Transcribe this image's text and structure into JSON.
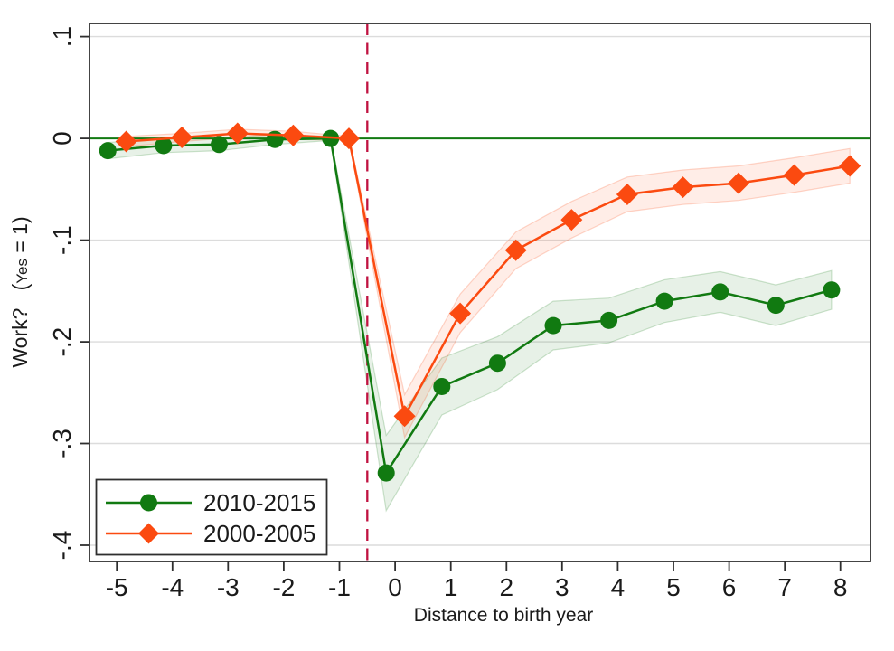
{
  "chart_data": {
    "type": "line",
    "title": "",
    "xlabel": "Distance to birth year",
    "ylabel": "Work?   (Yes = 1)",
    "ylabel_parts": {
      "prefix": "Work?   (",
      "small": "Yes",
      "suffix": " = 1)"
    },
    "x_ticks": [
      -5,
      -4,
      -3,
      -2,
      -1,
      0,
      1,
      2,
      3,
      4,
      5,
      6,
      7,
      8
    ],
    "x_tick_labels": [
      "-5",
      "-4",
      "-3",
      "-2",
      "-1",
      "0",
      "1",
      "2",
      "3",
      "4",
      "5",
      "6",
      "7",
      "8"
    ],
    "y_ticks": [
      0.1,
      0,
      -0.1,
      -0.2,
      -0.3,
      -0.4
    ],
    "y_tick_labels": [
      ".1",
      "0",
      "-.1",
      "-.2",
      "-.3",
      "-.4"
    ],
    "xlim": [
      -5.49,
      8.54
    ],
    "ylim": [
      -0.416,
      0.113
    ],
    "grid": "horizontal",
    "legend_position": "bottom-left",
    "colors": {
      "green_series": "#117a11",
      "orange_series": "#fb4a10",
      "zero_line": "#117a11",
      "treatment_line": "#c01240",
      "gridline": "#dcdcdc",
      "axis": "#2f2f2f",
      "text": "#1a1a1a",
      "background": "#ffffff"
    },
    "reference_lines": [
      {
        "type": "horizontal",
        "value": 0,
        "style": "solid",
        "color": "#117a11"
      },
      {
        "type": "vertical",
        "value": -0.5,
        "style": "dashed",
        "color": "#c01240"
      }
    ],
    "categories": [
      -5,
      -4,
      -3,
      -2,
      -1,
      0,
      1,
      2,
      3,
      4,
      5,
      6,
      7,
      8
    ],
    "series": [
      {
        "name": "2010-2015",
        "marker": "circle",
        "color": "#117a11",
        "band_fill": "rgba(17,122,17,0.10)",
        "band_edge": "rgba(17,122,17,0.20)",
        "x_offset": -0.16,
        "values": [
          -0.012,
          -0.007,
          -0.006,
          -0.001,
          0.0,
          -0.329,
          -0.244,
          -0.221,
          -0.184,
          -0.179,
          -0.16,
          -0.151,
          -0.164,
          -0.149
        ],
        "ci": [
          0.008,
          0.007,
          0.006,
          0.005,
          0.002,
          0.037,
          0.028,
          0.026,
          0.024,
          0.022,
          0.021,
          0.02,
          0.02,
          0.019
        ]
      },
      {
        "name": "2000-2005",
        "marker": "diamond",
        "color": "#fb4a10",
        "band_fill": "rgba(251,74,16,0.10)",
        "band_edge": "rgba(251,74,16,0.22)",
        "x_offset": 0.17,
        "values": [
          -0.003,
          0.001,
          0.005,
          0.003,
          0.0,
          -0.273,
          -0.172,
          -0.11,
          -0.08,
          -0.055,
          -0.048,
          -0.044,
          -0.036,
          -0.027
        ],
        "ci": [
          0.005,
          0.004,
          0.004,
          0.004,
          0.002,
          0.021,
          0.019,
          0.018,
          0.018,
          0.017,
          0.017,
          0.017,
          0.017,
          0.017
        ]
      }
    ]
  }
}
